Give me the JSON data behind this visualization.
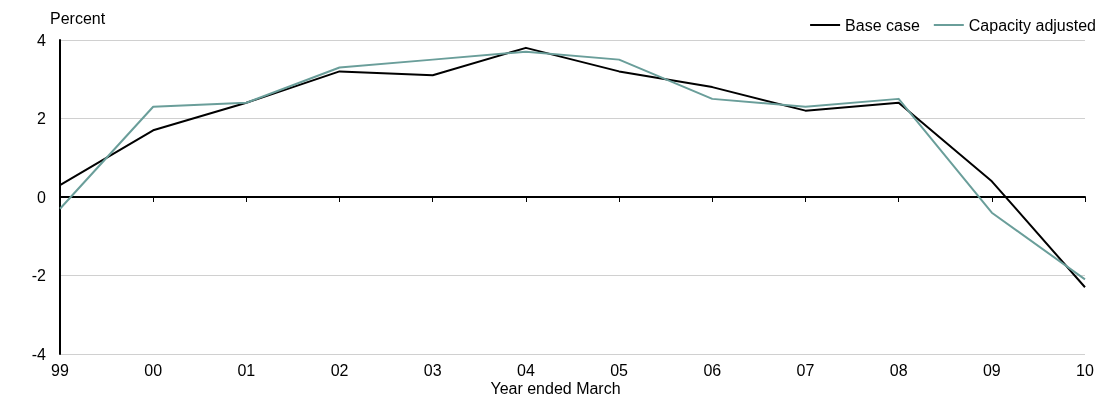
{
  "chart_data": {
    "type": "line",
    "ylabel": "Percent",
    "xlabel": "Year ended March",
    "categories": [
      "99",
      "00",
      "01",
      "02",
      "03",
      "04",
      "05",
      "06",
      "07",
      "08",
      "09",
      "10"
    ],
    "series": [
      {
        "name": "Base case",
        "color": "#000000",
        "values": [
          0.3,
          1.7,
          2.4,
          3.2,
          3.1,
          3.8,
          3.2,
          2.8,
          2.2,
          2.4,
          0.4,
          -2.3
        ]
      },
      {
        "name": "Capacity adjusted",
        "color": "#6a9e9a",
        "values": [
          -0.3,
          2.3,
          2.4,
          3.3,
          3.5,
          3.7,
          3.5,
          2.5,
          2.3,
          2.5,
          -0.4,
          -2.1
        ]
      }
    ],
    "ylim": [
      -4,
      4
    ],
    "yticks": [
      -4,
      -2,
      0,
      2,
      4
    ],
    "grid": "y",
    "legend": "top right",
    "marker": "none",
    "line_style": "solid"
  }
}
